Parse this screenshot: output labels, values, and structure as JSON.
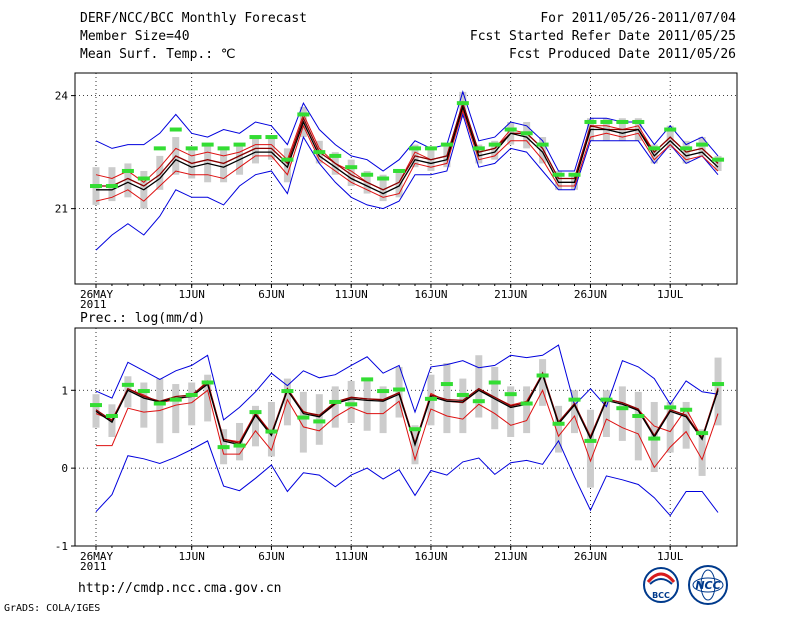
{
  "header": {
    "title": "DERF/NCC/BCC Monthly Forecast",
    "member_size": "Member Size=40",
    "variable": "Mean Surf. Temp.: ℃",
    "period": "For 2011/05/26-2011/07/04",
    "start_date": "Fcst Started Refer Date 2011/05/25",
    "produced_date": "Fcst Produced Date 2011/05/26"
  },
  "footer": {
    "url": "http://cmdp.ncc.cma.gov.cn",
    "credit": "GrADS: COLA/IGES",
    "logo_bcc": "BCC",
    "logo_ncc": "NCC"
  },
  "colors": {
    "max_min": "#0000dd",
    "spread": "#dd1111",
    "mean": "#000000",
    "median": "#8b0000",
    "box": "#cccccc",
    "member": "#33dd33",
    "grid": "#000000"
  },
  "chart_data": [
    {
      "type": "line",
      "title": "Mean Surf. Temp.: ℃",
      "xlabel": "",
      "ylabel": "Mean Surf. Temp. (℃)",
      "ylim": [
        19.0,
        24.6
      ],
      "yticks": [
        21,
        24
      ],
      "xtick_days": [
        0,
        6,
        11,
        16,
        21,
        26,
        31,
        36
      ],
      "xtick_labels": [
        "26MAY\n2011",
        "1JUN",
        "6JUN",
        "11JUN",
        "16JUN",
        "21JUN",
        "26JUN",
        "1JUL"
      ],
      "grid": true,
      "n_days": 40,
      "series": [
        {
          "name": "max",
          "values": [
            22.8,
            22.6,
            22.7,
            22.7,
            23.0,
            23.5,
            23.0,
            22.9,
            23.1,
            23.0,
            23.3,
            23.2,
            22.7,
            23.8,
            23.1,
            22.7,
            22.4,
            22.3,
            22.0,
            22.3,
            22.8,
            22.6,
            22.7,
            24.1,
            22.8,
            22.9,
            23.3,
            23.2,
            22.8,
            22.0,
            22.0,
            23.4,
            23.4,
            23.3,
            23.3,
            22.7,
            23.2,
            22.7,
            22.9,
            22.4
          ]
        },
        {
          "name": "min",
          "values": [
            19.9,
            20.3,
            20.6,
            20.3,
            20.8,
            21.5,
            21.3,
            21.3,
            21.1,
            21.6,
            21.9,
            22.0,
            21.4,
            22.9,
            22.2,
            21.7,
            21.3,
            21.1,
            21.0,
            21.2,
            21.9,
            21.9,
            22.0,
            23.5,
            22.1,
            22.2,
            22.6,
            22.5,
            22.0,
            21.5,
            21.5,
            22.8,
            22.8,
            22.8,
            22.8,
            22.2,
            22.7,
            22.2,
            22.4,
            21.9
          ]
        },
        {
          "name": "upper",
          "values": [
            21.9,
            21.8,
            22.0,
            21.7,
            22.1,
            22.6,
            22.4,
            22.5,
            22.4,
            22.5,
            22.7,
            22.7,
            22.3,
            23.5,
            22.6,
            22.2,
            22.0,
            21.7,
            21.5,
            21.7,
            22.5,
            22.3,
            22.4,
            23.8,
            22.5,
            22.6,
            23.1,
            23.0,
            22.6,
            21.8,
            21.8,
            23.2,
            23.2,
            23.1,
            23.2,
            22.5,
            22.9,
            22.5,
            22.6,
            22.2
          ]
        },
        {
          "name": "lower",
          "values": [
            21.2,
            21.3,
            21.5,
            21.2,
            21.6,
            22.0,
            21.9,
            21.9,
            21.8,
            22.1,
            22.4,
            22.4,
            21.9,
            23.2,
            22.3,
            22.0,
            21.7,
            21.5,
            21.3,
            21.4,
            22.2,
            22.1,
            22.2,
            23.6,
            22.3,
            22.4,
            22.8,
            22.8,
            22.3,
            21.6,
            21.6,
            22.9,
            23.0,
            22.9,
            23.0,
            22.3,
            22.7,
            22.3,
            22.4,
            22.0
          ]
        },
        {
          "name": "mean",
          "values": [
            21.5,
            21.5,
            21.7,
            21.5,
            21.8,
            22.3,
            22.1,
            22.2,
            22.1,
            22.3,
            22.5,
            22.5,
            22.1,
            23.3,
            22.4,
            22.1,
            21.8,
            21.6,
            21.4,
            21.6,
            22.3,
            22.2,
            22.3,
            23.7,
            22.4,
            22.5,
            23.0,
            22.9,
            22.5,
            21.7,
            21.7,
            23.1,
            23.1,
            23.0,
            23.1,
            22.4,
            22.8,
            22.4,
            22.5,
            22.1
          ]
        },
        {
          "name": "median",
          "values": [
            21.6,
            21.6,
            21.8,
            21.6,
            21.9,
            22.4,
            22.2,
            22.3,
            22.2,
            22.4,
            22.6,
            22.6,
            22.2,
            23.4,
            22.5,
            22.2,
            21.9,
            21.7,
            21.5,
            21.7,
            22.4,
            22.3,
            22.4,
            23.8,
            22.5,
            22.6,
            23.0,
            23.0,
            22.6,
            21.8,
            21.8,
            23.2,
            23.1,
            23.1,
            23.1,
            22.5,
            22.9,
            22.5,
            22.6,
            22.2
          ]
        },
        {
          "name": "box_low",
          "values": [
            21.1,
            21.2,
            21.3,
            21.0,
            21.5,
            21.9,
            21.8,
            21.7,
            21.7,
            21.9,
            22.2,
            22.3,
            21.7,
            22.9,
            22.2,
            21.9,
            21.6,
            21.4,
            21.2,
            21.3,
            22.1,
            22.0,
            22.1,
            23.4,
            22.2,
            22.3,
            22.7,
            22.6,
            22.2,
            21.5,
            21.5,
            22.8,
            22.8,
            22.8,
            22.8,
            22.2,
            22.6,
            22.2,
            22.4,
            22.0
          ]
        },
        {
          "name": "box_high",
          "values": [
            22.1,
            22.1,
            22.2,
            22.0,
            22.4,
            22.9,
            22.6,
            22.7,
            22.6,
            22.7,
            22.9,
            22.9,
            22.6,
            23.7,
            22.8,
            22.5,
            22.3,
            22.0,
            21.9,
            22.0,
            22.7,
            22.6,
            22.7,
            24.1,
            22.7,
            22.8,
            23.3,
            23.3,
            22.9,
            22.0,
            21.9,
            23.4,
            23.4,
            23.4,
            23.4,
            22.7,
            23.2,
            22.8,
            22.9,
            22.4
          ]
        },
        {
          "name": "member",
          "values": [
            21.6,
            21.6,
            22.0,
            21.8,
            22.6,
            23.1,
            22.6,
            22.7,
            22.6,
            22.7,
            22.9,
            22.9,
            22.3,
            23.5,
            22.5,
            22.4,
            22.1,
            21.9,
            21.8,
            22.0,
            22.6,
            22.6,
            22.7,
            23.8,
            22.6,
            22.7,
            23.1,
            23.0,
            22.7,
            21.9,
            21.9,
            23.3,
            23.3,
            23.3,
            23.3,
            22.6,
            23.1,
            22.6,
            22.7,
            22.3
          ]
        }
      ]
    },
    {
      "type": "line",
      "title": "Prec.: log(mm/d)",
      "xlabel": "",
      "ylabel": "log(mm/d)",
      "ylim": [
        -1.0,
        1.8
      ],
      "yticks": [
        -1,
        0,
        1
      ],
      "xtick_days": [
        0,
        6,
        11,
        16,
        21,
        26,
        31,
        36
      ],
      "xtick_labels": [
        "26MAY\n2011",
        "1JUN",
        "6JUN",
        "11JUN",
        "16JUN",
        "21JUN",
        "26JUN",
        "1JUL"
      ],
      "grid": true,
      "n_days": 40,
      "series": [
        {
          "name": "max",
          "values": [
            0.99,
            0.9,
            1.36,
            1.25,
            1.14,
            1.25,
            1.32,
            1.45,
            0.62,
            0.78,
            0.98,
            1.22,
            1.06,
            1.25,
            1.16,
            1.2,
            1.32,
            1.43,
            1.22,
            1.32,
            0.72,
            1.3,
            1.33,
            1.38,
            1.29,
            1.32,
            1.45,
            1.42,
            1.45,
            1.58,
            0.81,
            1.02,
            0.79,
            1.38,
            1.3,
            1.15,
            0.82,
            1.12,
            0.98,
            0.95
          ]
        },
        {
          "name": "min",
          "values": [
            -0.56,
            -0.34,
            0.16,
            0.12,
            0.06,
            0.14,
            0.24,
            0.35,
            -0.23,
            -0.29,
            -0.13,
            0.04,
            -0.3,
            -0.06,
            -0.09,
            -0.24,
            -0.09,
            0.0,
            -0.14,
            -0.02,
            -0.35,
            -0.03,
            -0.09,
            0.08,
            0.13,
            -0.08,
            0.07,
            0.1,
            0.05,
            0.35,
            -0.11,
            -0.54,
            -0.1,
            -0.15,
            -0.21,
            -0.38,
            -0.61,
            -0.3,
            -0.3,
            -0.57
          ]
        },
        {
          "name": "upper",
          "values": [
            0.7,
            0.62,
            1.02,
            0.94,
            0.84,
            0.88,
            0.93,
            1.12,
            0.37,
            0.34,
            0.71,
            0.45,
            0.99,
            0.73,
            0.66,
            0.82,
            0.91,
            0.89,
            0.87,
            0.97,
            0.32,
            0.96,
            0.86,
            0.84,
            1.0,
            0.91,
            0.81,
            0.86,
            1.21,
            0.59,
            0.82,
            0.41,
            0.89,
            0.84,
            0.75,
            0.54,
            0.47,
            0.76,
            0.39,
            1.03
          ]
        },
        {
          "name": "lower",
          "values": [
            0.29,
            0.29,
            0.77,
            0.72,
            0.74,
            0.81,
            0.84,
            1.0,
            0.18,
            0.18,
            0.48,
            0.23,
            0.88,
            0.53,
            0.48,
            0.66,
            0.78,
            0.7,
            0.7,
            0.86,
            0.11,
            0.76,
            0.67,
            0.63,
            0.82,
            0.7,
            0.55,
            0.61,
            1.0,
            0.41,
            0.67,
            0.09,
            0.63,
            0.52,
            0.44,
            0.01,
            0.27,
            0.47,
            0.11,
            0.7
          ]
        },
        {
          "name": "mean",
          "values": [
            0.73,
            0.59,
            1.0,
            0.9,
            0.85,
            0.9,
            0.92,
            1.08,
            0.35,
            0.3,
            0.68,
            0.42,
            1.0,
            0.7,
            0.66,
            0.83,
            0.89,
            0.87,
            0.86,
            0.95,
            0.3,
            0.92,
            0.86,
            0.85,
            1.0,
            0.89,
            0.78,
            0.82,
            1.2,
            0.57,
            0.81,
            0.38,
            0.87,
            0.82,
            0.74,
            0.4,
            0.73,
            0.66,
            0.37,
            1.0
          ]
        },
        {
          "name": "median",
          "values": [
            0.75,
            0.61,
            1.02,
            0.92,
            0.86,
            0.92,
            0.94,
            1.1,
            0.37,
            0.32,
            0.7,
            0.44,
            1.02,
            0.72,
            0.68,
            0.85,
            0.91,
            0.89,
            0.88,
            0.97,
            0.32,
            0.94,
            0.88,
            0.87,
            1.02,
            0.91,
            0.8,
            0.84,
            1.22,
            0.59,
            0.83,
            0.4,
            0.89,
            0.84,
            0.76,
            0.42,
            0.75,
            0.68,
            0.39,
            1.02
          ]
        },
        {
          "name": "box_low",
          "values": [
            0.52,
            0.4,
            0.78,
            0.52,
            0.32,
            0.45,
            0.55,
            0.6,
            0.05,
            0.1,
            0.28,
            0.15,
            0.55,
            0.2,
            0.3,
            0.52,
            0.58,
            0.48,
            0.45,
            0.65,
            0.05,
            0.55,
            0.45,
            0.45,
            0.65,
            0.5,
            0.4,
            0.45,
            0.8,
            0.2,
            0.45,
            -0.25,
            0.4,
            0.35,
            0.1,
            -0.05,
            0.2,
            0.25,
            -0.1,
            0.55
          ]
        },
        {
          "name": "box_high",
          "values": [
            0.95,
            0.82,
            1.18,
            1.1,
            1.15,
            1.08,
            1.1,
            1.2,
            0.5,
            0.58,
            0.8,
            0.85,
            1.15,
            0.98,
            0.95,
            1.05,
            1.12,
            1.15,
            1.05,
            1.3,
            0.55,
            1.2,
            1.35,
            1.15,
            1.45,
            1.3,
            1.05,
            1.05,
            1.4,
            0.8,
            1.0,
            0.75,
            1.0,
            1.05,
            0.98,
            0.85,
            0.85,
            0.85,
            0.5,
            1.42
          ]
        },
        {
          "name": "member",
          "values": [
            0.81,
            0.67,
            1.07,
            0.99,
            0.83,
            0.88,
            0.94,
            1.1,
            0.27,
            0.29,
            0.72,
            0.47,
            0.99,
            0.65,
            0.6,
            0.85,
            0.82,
            1.14,
            0.99,
            1.01,
            0.5,
            0.89,
            1.08,
            0.94,
            0.86,
            1.1,
            0.95,
            0.83,
            1.19,
            0.57,
            0.88,
            0.35,
            0.88,
            0.77,
            0.67,
            0.38,
            0.78,
            0.75,
            0.45,
            1.08
          ]
        }
      ]
    }
  ]
}
